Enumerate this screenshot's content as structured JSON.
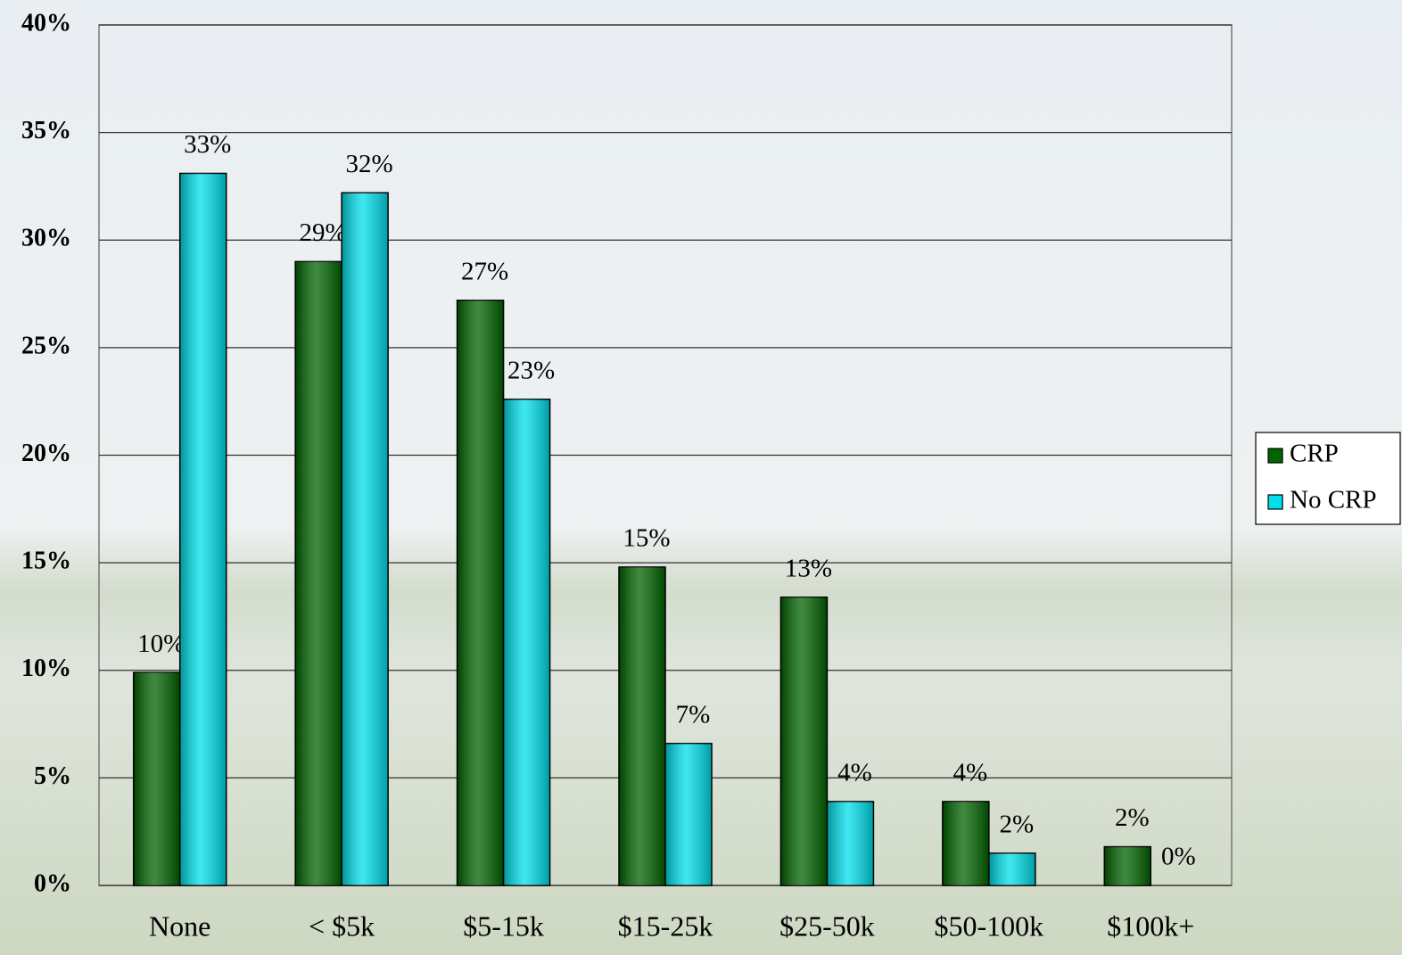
{
  "chart_data": {
    "type": "bar",
    "categories": [
      "None",
      "< $5k",
      "$5-15k",
      "$15-25k",
      "$25-50k",
      "$50-100k",
      "$100k+"
    ],
    "series": [
      {
        "name": "CRP",
        "color": "#006400",
        "values": [
          9.9,
          29,
          27.2,
          14.8,
          13.4,
          3.9,
          1.8
        ],
        "value_labels": [
          "10%",
          "29%",
          "27%",
          "15%",
          "13%",
          "4%",
          "2%"
        ]
      },
      {
        "name": "No CRP",
        "color": "#00e0ec",
        "values": [
          33.1,
          32.2,
          22.6,
          6.6,
          3.9,
          1.5,
          0
        ],
        "value_labels": [
          "33%",
          "32%",
          "23%",
          "7%",
          "4%",
          "2%",
          "0%"
        ]
      }
    ],
    "ylim": [
      0,
      40
    ],
    "yticks": [
      {
        "value": 0,
        "label": "0%"
      },
      {
        "value": 5,
        "label": "5%"
      },
      {
        "value": 10,
        "label": "10%"
      },
      {
        "value": 15,
        "label": "15%"
      },
      {
        "value": 20,
        "label": "20%"
      },
      {
        "value": 25,
        "label": "25%"
      },
      {
        "value": 30,
        "label": "30%"
      },
      {
        "value": 35,
        "label": "35%"
      },
      {
        "value": 40,
        "label": "40%"
      }
    ],
    "grid": true,
    "legend": "right"
  }
}
